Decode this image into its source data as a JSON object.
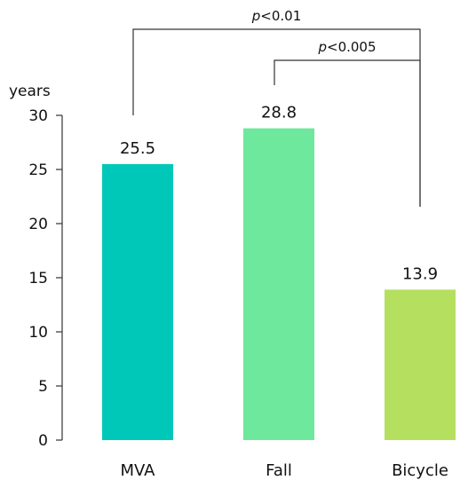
{
  "chart_data": {
    "type": "bar",
    "title": "",
    "xlabel": "",
    "ylabel": "years",
    "ylim": [
      0,
      30
    ],
    "yticks": [
      0,
      5,
      10,
      15,
      20,
      25,
      30
    ],
    "grid": false,
    "categories": [
      "MVA",
      "Fall",
      "Bicycle"
    ],
    "values": [
      25.5,
      28.8,
      13.9
    ],
    "value_labels": [
      "25.5",
      "28.8",
      "13.9"
    ],
    "bar_colors": [
      "#00c8b8",
      "#6de89c",
      "#b5e05f"
    ],
    "annotations": [
      {
        "from": "MVA",
        "to": "Bicycle",
        "p_symbol": "p",
        "p_value": "<0.01"
      },
      {
        "from": "Fall",
        "to": "Bicycle",
        "p_symbol": "p",
        "p_value": "<0.005"
      }
    ]
  }
}
